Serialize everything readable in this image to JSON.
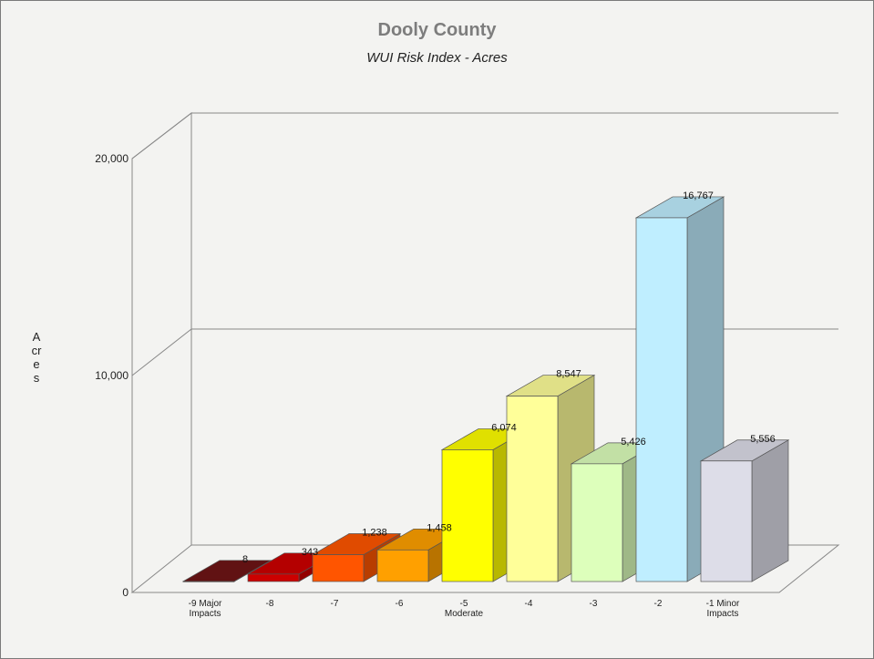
{
  "chart_data": {
    "type": "bar",
    "title": "Dooly County",
    "subtitle": "WUI Risk Index - Acres",
    "ylabel": "Acres",
    "xlabel": "",
    "ylim": [
      0,
      20000
    ],
    "y_ticks": [
      "0",
      "10,000",
      "20,000"
    ],
    "y_tick_values": [
      0,
      10000,
      20000
    ],
    "categories": [
      [
        "-9 Major",
        "Impacts"
      ],
      [
        "-8"
      ],
      [
        "-7"
      ],
      [
        "-6"
      ],
      [
        "-5",
        "Moderate"
      ],
      [
        "-4"
      ],
      [
        "-3"
      ],
      [
        "-2"
      ],
      [
        "-1 Minor",
        "Impacts"
      ]
    ],
    "values": [
      8,
      343,
      1238,
      1458,
      6074,
      8547,
      5426,
      16767,
      5556
    ],
    "value_labels": [
      "8",
      "343",
      "1,238",
      "1,458",
      "6,074",
      "8,547",
      "5,426",
      "16,767",
      "5,556"
    ],
    "colors": [
      "#6e1416",
      "#cc0000",
      "#ff5500",
      "#ffa000",
      "#ffff00",
      "#ffff99",
      "#ddffbb",
      "#bfeeff",
      "#dddde8"
    ],
    "grid": true,
    "legend": "none"
  }
}
